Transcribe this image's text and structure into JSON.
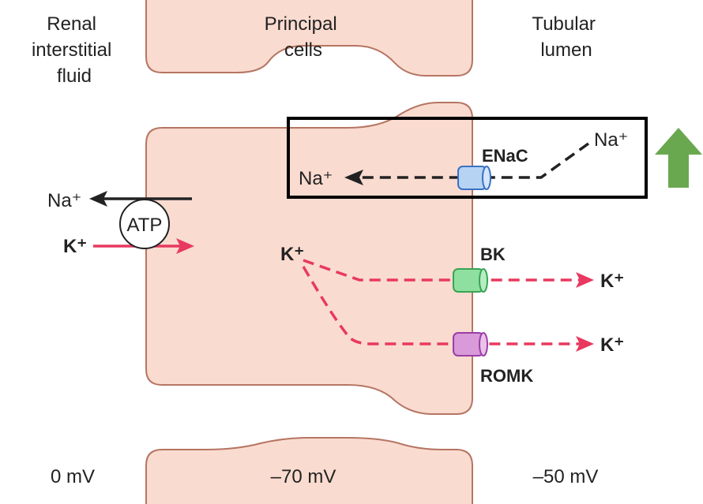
{
  "headers": {
    "interstitial": [
      "Renal",
      "interstitial",
      "fluid"
    ],
    "cells": [
      "Principal",
      "cells"
    ],
    "lumen": [
      "Tubular",
      "lumen"
    ]
  },
  "potentials": {
    "interstitial": "0 mV",
    "cells": "–70 mV",
    "lumen": "–50 mV"
  },
  "pump": {
    "label": "ATP",
    "na_ion": "Na⁺",
    "k_ion": "K⁺"
  },
  "enac": {
    "channel_label": "ENaC",
    "na_lumen": "Na⁺",
    "na_cell": "Na⁺"
  },
  "potassium": {
    "k_cell": "K⁺",
    "bk_label": "BK",
    "romk_label": "ROMK",
    "k_out_bk": "K⁺",
    "k_out_romk": "K⁺"
  },
  "colors": {
    "cell_fill": "#fadbd0",
    "cell_stroke": "#b57562",
    "na_arrow": "#222222",
    "k_arrow": "#e8395f",
    "enac_channel": "#b7d3f3",
    "bk_channel": "#8fe0a0",
    "romk_channel": "#d89ad8",
    "highlight_box": "#000000",
    "up_arrow": "#6aa84f"
  },
  "icons": {
    "up_arrow": "up-arrow-icon"
  }
}
